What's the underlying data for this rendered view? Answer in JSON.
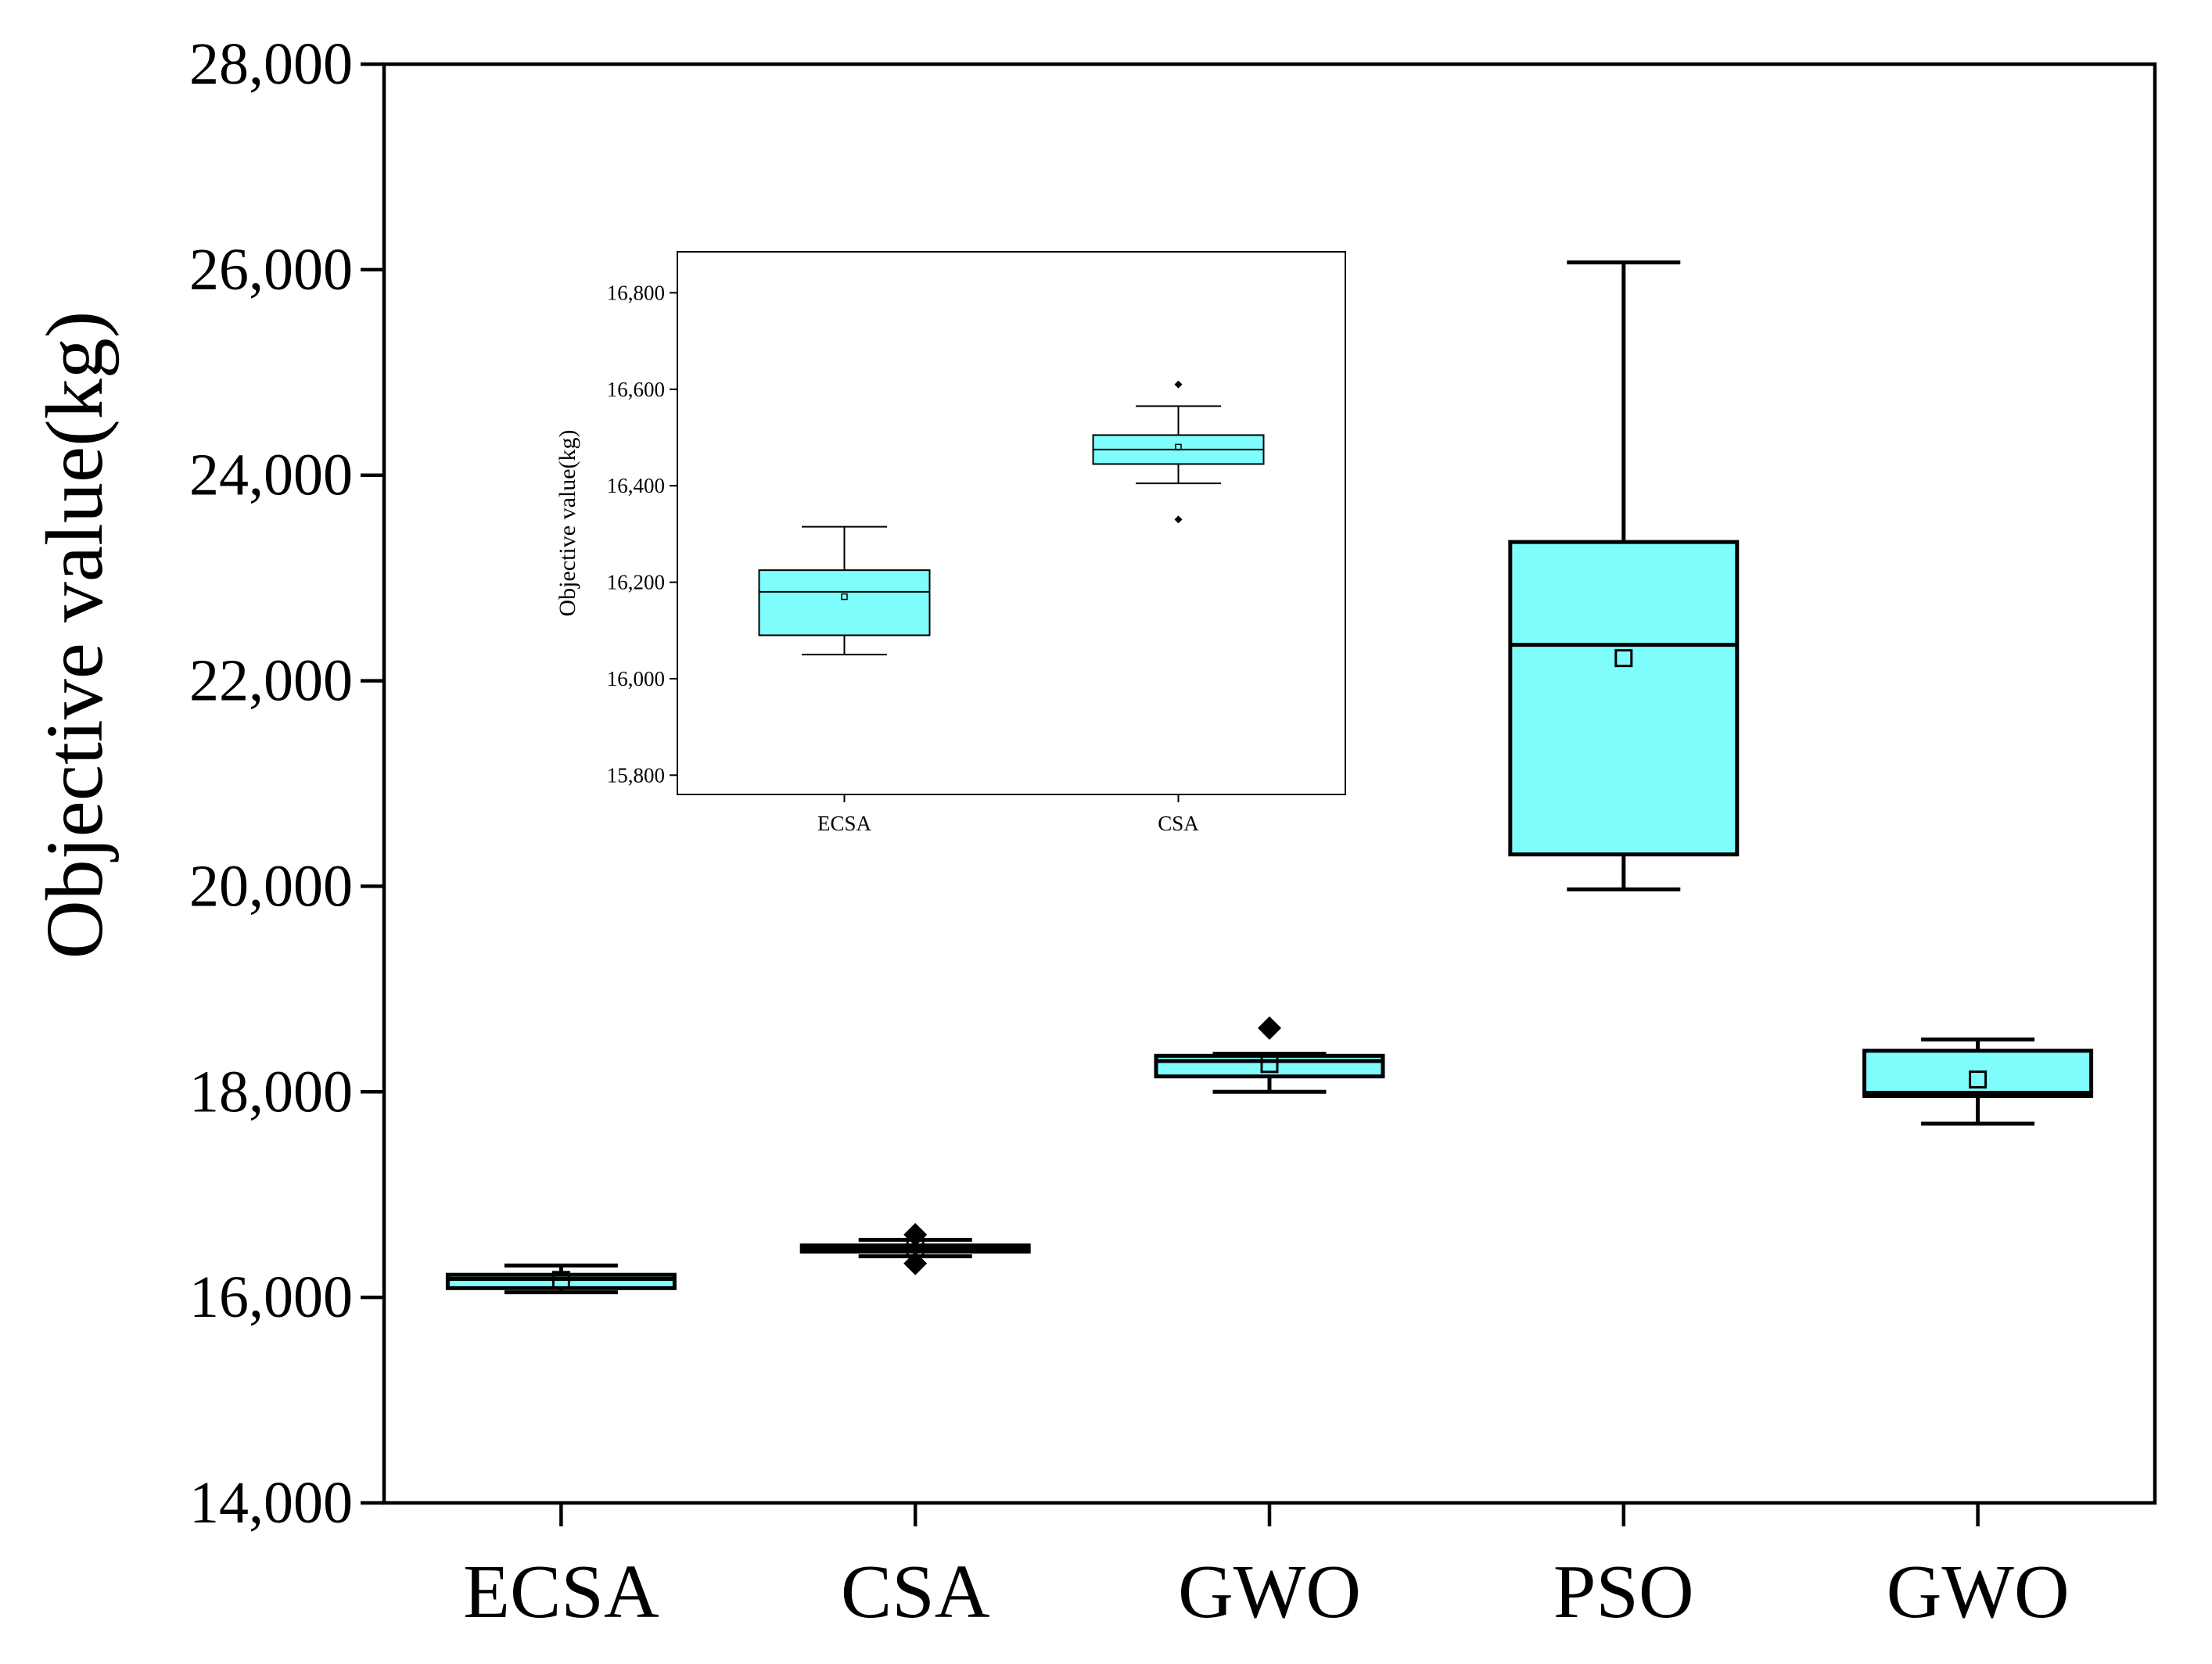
{
  "chart_data": [
    {
      "type": "box",
      "name": "main",
      "title": "",
      "xlabel": "",
      "ylabel": "Objective value(kg)",
      "ylim": [
        14000,
        28000
      ],
      "yticks": [
        14000,
        16000,
        18000,
        20000,
        22000,
        24000,
        26000,
        28000
      ],
      "ytick_labels": [
        "14,000",
        "16,000",
        "18,000",
        "20,000",
        "22,000",
        "24,000",
        "26,000",
        "28,000"
      ],
      "categories": [
        "ECSA",
        "CSA",
        "GWO",
        "PSO",
        "GWO"
      ],
      "boxes": [
        {
          "whisker_low": 16050,
          "q1": 16090,
          "median": 16180,
          "q3": 16220,
          "whisker_high": 16310,
          "mean": 16170,
          "outliers": []
        },
        {
          "whisker_low": 16400,
          "q1": 16445,
          "median": 16475,
          "q3": 16505,
          "whisker_high": 16560,
          "mean": 16480,
          "outliers": [
            16330,
            16610
          ]
        },
        {
          "whisker_low": 18000,
          "q1": 18150,
          "median": 18300,
          "q3": 18350,
          "whisker_high": 18370,
          "mean": 18270,
          "outliers": [
            18620
          ]
        },
        {
          "whisker_low": 19970,
          "q1": 20310,
          "median": 22350,
          "q3": 23350,
          "whisker_high": 26070,
          "mean": 22220,
          "outliers": []
        },
        {
          "whisker_low": 17690,
          "q1": 17960,
          "median": 17990,
          "q3": 18400,
          "whisker_high": 18510,
          "mean": 18120,
          "outliers": []
        }
      ],
      "box_color": "#7ffdfd",
      "grid": false
    },
    {
      "type": "box",
      "name": "inset",
      "title": "",
      "xlabel": "",
      "ylabel": "Objective value(kg)",
      "ylim": [
        15760,
        16885
      ],
      "yticks": [
        15800,
        16000,
        16200,
        16400,
        16600,
        16800
      ],
      "ytick_labels": [
        "15,800",
        "16,000",
        "16,200",
        "16,400",
        "16,600",
        "16,800"
      ],
      "categories": [
        "ECSA",
        "CSA"
      ],
      "boxes": [
        {
          "whisker_low": 16050,
          "q1": 16090,
          "median": 16180,
          "q3": 16225,
          "whisker_high": 16315,
          "mean": 16170,
          "outliers": []
        },
        {
          "whisker_low": 16405,
          "q1": 16445,
          "median": 16475,
          "q3": 16505,
          "whisker_high": 16565,
          "mean": 16480,
          "outliers": [
            16330,
            16610
          ]
        }
      ],
      "box_color": "#7ffdfd",
      "grid": false
    }
  ]
}
